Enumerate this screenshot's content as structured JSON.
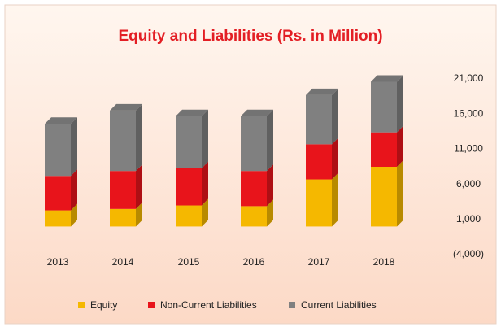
{
  "chart_data": {
    "type": "bar",
    "stacked": true,
    "title": "Equity and Liabilities (Rs. in Million)",
    "categories": [
      "2013",
      "2014",
      "2015",
      "2016",
      "2017",
      "2018"
    ],
    "series": [
      {
        "name": "Equity",
        "color": "#f5b800",
        "values": [
          2300,
          2500,
          3000,
          2900,
          6700,
          8500
        ]
      },
      {
        "name": "Non-Current Liabilities",
        "color": "#e8141b",
        "values": [
          4900,
          5400,
          5300,
          5000,
          5000,
          4900
        ]
      },
      {
        "name": "Current Liabilities",
        "color": "#808080",
        "values": [
          7400,
          8600,
          7400,
          7800,
          7000,
          7200
        ]
      }
    ],
    "ylim": [
      -4000,
      21000
    ],
    "yticks": [
      {
        "value": -4000,
        "label": "(4,000)"
      },
      {
        "value": 1000,
        "label": "1,000"
      },
      {
        "value": 6000,
        "label": "6,000"
      },
      {
        "value": 11000,
        "label": "11,000"
      },
      {
        "value": 16000,
        "label": "16,000"
      },
      {
        "value": 21000,
        "label": "21,000"
      }
    ],
    "grid": false,
    "legend": "bottom"
  }
}
